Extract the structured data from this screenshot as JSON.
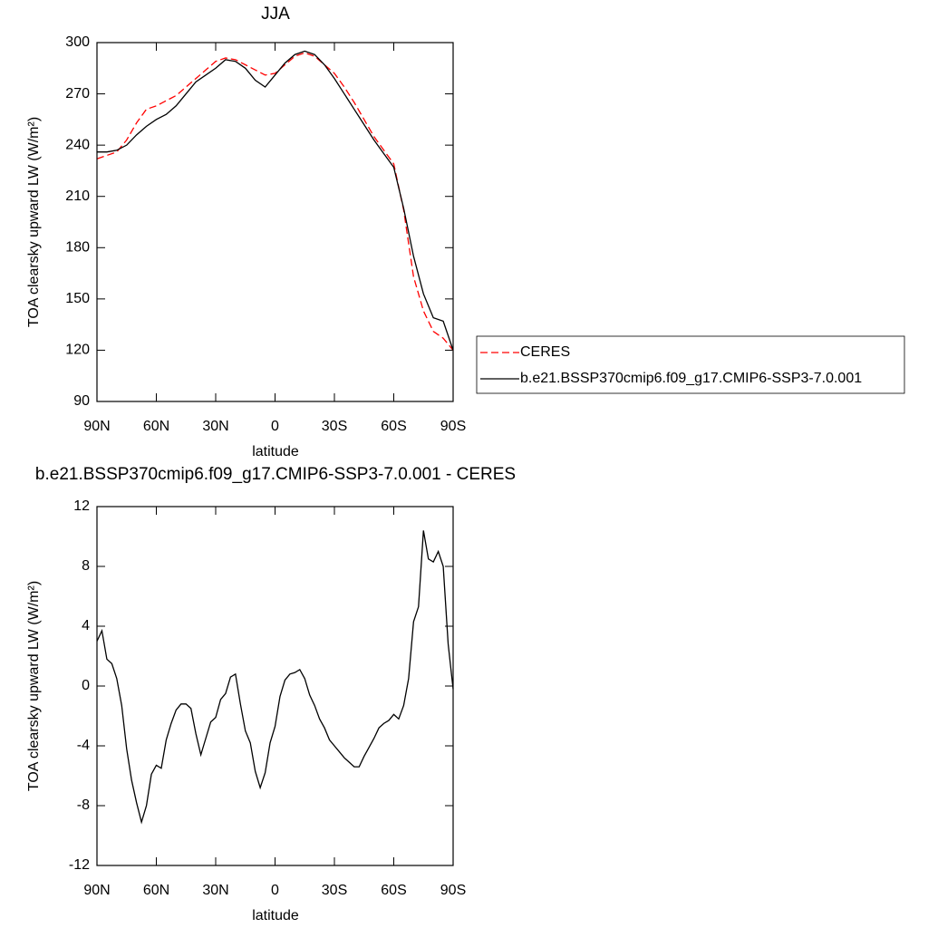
{
  "chart_data": [
    {
      "type": "line",
      "title": "JJA",
      "x_label": "latitude",
      "y_label": "TOA clearsky upward LW (W/m²)",
      "x": [
        90,
        85,
        80,
        75,
        70,
        65,
        60,
        55,
        50,
        45,
        40,
        35,
        30,
        25,
        20,
        15,
        10,
        5,
        0,
        -5,
        -10,
        -15,
        -20,
        -25,
        -30,
        -35,
        -40,
        -45,
        -50,
        -55,
        -60,
        -65,
        -70,
        -75,
        -80,
        -85,
        -90
      ],
      "series": [
        {
          "name": "CERES",
          "color": "#ff0000",
          "style": "dashed",
          "values": [
            232,
            234,
            236,
            243,
            253,
            261,
            263,
            266,
            269,
            274,
            279,
            284,
            289,
            291,
            290,
            287,
            284,
            281,
            282,
            287,
            292,
            294,
            292,
            287,
            282,
            274,
            265,
            255,
            245,
            237,
            229,
            202,
            163,
            143,
            131,
            127,
            120
          ]
        },
        {
          "name": "b.e21.BSSP370cmip6.f09_g17.CMIP6-SSP3-7.0.001",
          "color": "#000000",
          "style": "solid",
          "values": [
            236,
            236,
            237,
            240,
            246,
            251,
            255,
            258,
            263,
            270,
            277,
            281,
            285,
            290,
            289,
            285,
            278,
            274,
            281,
            288,
            293,
            295,
            293,
            287,
            279,
            270,
            261,
            252,
            243,
            235,
            227,
            203,
            175,
            153,
            139,
            137,
            120
          ]
        }
      ],
      "xlim": [
        90,
        -90
      ],
      "xticks": [
        {
          "value": 90,
          "label": "90N"
        },
        {
          "value": 60,
          "label": "60N"
        },
        {
          "value": 30,
          "label": "30N"
        },
        0,
        {
          "value": -30,
          "label": "30S"
        },
        {
          "value": -60,
          "label": "60S"
        },
        {
          "value": -90,
          "label": "90S"
        }
      ],
      "ylim": [
        90,
        300
      ],
      "yticks": [
        90,
        120,
        150,
        180,
        210,
        240,
        270,
        300
      ],
      "legend": "outside-right"
    },
    {
      "type": "line",
      "title": "b.e21.BSSP370cmip6.f09_g17.CMIP6-SSP3-7.0.001 - CERES",
      "x_label": "latitude",
      "y_label": "TOA clearsky upward LW (W/m²)",
      "x": [
        90,
        87.5,
        85,
        82.5,
        80,
        77.5,
        75,
        72.5,
        70,
        67.5,
        65,
        62.5,
        60,
        57.5,
        55,
        52.5,
        50,
        47.5,
        45,
        42.5,
        40,
        37.5,
        35,
        32.5,
        30,
        27.5,
        25,
        22.5,
        20,
        17.5,
        15,
        12.5,
        10,
        7.5,
        5,
        2.5,
        0,
        -2.5,
        -5,
        -7.5,
        -10,
        -12.5,
        -15,
        -17.5,
        -20,
        -22.5,
        -25,
        -27.5,
        -30,
        -32.5,
        -35,
        -37.5,
        -40,
        -42.5,
        -45,
        -47.5,
        -50,
        -52.5,
        -55,
        -57.5,
        -60,
        -62.5,
        -65,
        -67.5,
        -70,
        -72.5,
        -75,
        -77.5,
        -80,
        -82.5,
        -85,
        -87.5,
        -90
      ],
      "color": "#000000",
      "values": [
        3,
        3.7,
        1.8,
        1.5,
        0.5,
        -1.3,
        -4.2,
        -6.3,
        -7.8,
        -9.1,
        -8.0,
        -5.9,
        -5.3,
        -5.5,
        -3.6,
        -2.5,
        -1.6,
        -1.2,
        -1.2,
        -1.5,
        -3.2,
        -4.6,
        -3.5,
        -2.4,
        -2.1,
        -0.9,
        -0.5,
        0.6,
        0.8,
        -1.2,
        -3.0,
        -3.8,
        -5.7,
        -6.8,
        -5.8,
        -3.8,
        -2.7,
        -0.7,
        0.4,
        0.8,
        0.9,
        1.1,
        0.5,
        -0.6,
        -1.3,
        -2.2,
        -2.8,
        -3.6,
        -4.0,
        -4.4,
        -4.8,
        -5.1,
        -5.4,
        -5.4,
        -4.7,
        -4.1,
        -3.5,
        -2.8,
        -2.5,
        -2.3,
        -1.9,
        -2.2,
        -1.3,
        0.5,
        4.3,
        5.3,
        10.4,
        8.5,
        8.3,
        9.0,
        8.0,
        2.8,
        -0.2
      ],
      "xlim": [
        90,
        -90
      ],
      "xticks": [
        {
          "value": 90,
          "label": "90N"
        },
        {
          "value": 60,
          "label": "60N"
        },
        {
          "value": 30,
          "label": "30N"
        },
        0,
        {
          "value": -30,
          "label": "30S"
        },
        {
          "value": -60,
          "label": "60S"
        },
        {
          "value": -90,
          "label": "90S"
        }
      ],
      "ylim": [
        -12,
        12
      ],
      "yticks": [
        -12,
        -8,
        -4,
        0,
        4,
        8,
        12
      ]
    }
  ]
}
